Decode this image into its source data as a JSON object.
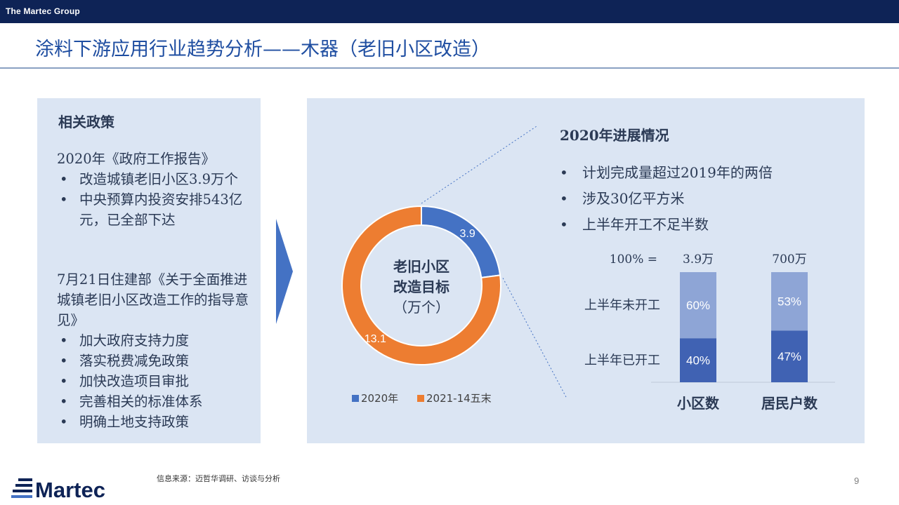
{
  "header": {
    "brand": "The Martec Group"
  },
  "page": {
    "title": "涂料下游应用行业趋势分析——木器（老旧小区改造）",
    "source": "信息来源：迈哲华调研、访谈与分析",
    "page_number": "9",
    "logo_text": "Martec"
  },
  "policy": {
    "heading": "相关政策",
    "block1_title": "2020年《政府工作报告》",
    "block1_items": [
      "改造城镇老旧小区3.9万个",
      "中央预算内投资安排543亿元，已全部下达"
    ],
    "block2_title": "7月21日住建部《关于全面推进城镇老旧小区改造工作的指导意见》",
    "block2_items": [
      "加大政府支持力度",
      "落实税费减免政策",
      "加快改造项目审批",
      "完善相关的标准体系",
      "明确土地支持政策"
    ]
  },
  "progress": {
    "title": "2020年进展情况",
    "items": [
      "计划完成量超过2019年的两倍",
      "涉及30亿平方米",
      "上半年开工不足半数"
    ]
  },
  "colors": {
    "accent": "#1f4ea1",
    "navy": "#0e2356",
    "donut_2020": "#4472c4",
    "donut_future": "#ed7d31",
    "bar_started": "#4062b3",
    "bar_not_started": "#8ea5d6",
    "panel": "#dbe5f3"
  },
  "chart_data": [
    {
      "type": "pie",
      "variant": "donut",
      "center_label": [
        "老旧小区",
        "改造目标",
        "（万个）"
      ],
      "slices": [
        {
          "label": "2020年",
          "value": 3.9,
          "value_label": "3.9"
        },
        {
          "label": "2021-14五末",
          "value": 13.1,
          "value_label": "13.1"
        }
      ],
      "legend": {
        "position": "bottom",
        "entries": [
          "2020年",
          "2021-14五末"
        ]
      }
    },
    {
      "type": "bar",
      "stacked": true,
      "normalized": true,
      "total_prefix": "100% =",
      "categories": [
        "小区数",
        "居民户数"
      ],
      "totals": [
        "3.9万",
        "700万"
      ],
      "series": [
        {
          "name": "上半年已开工",
          "values": [
            40,
            47
          ],
          "labels": [
            "40%",
            "47%"
          ]
        },
        {
          "name": "上半年未开工",
          "values": [
            60,
            53
          ],
          "labels": [
            "60%",
            "53%"
          ]
        }
      ],
      "ylim": [
        0,
        100
      ]
    }
  ]
}
